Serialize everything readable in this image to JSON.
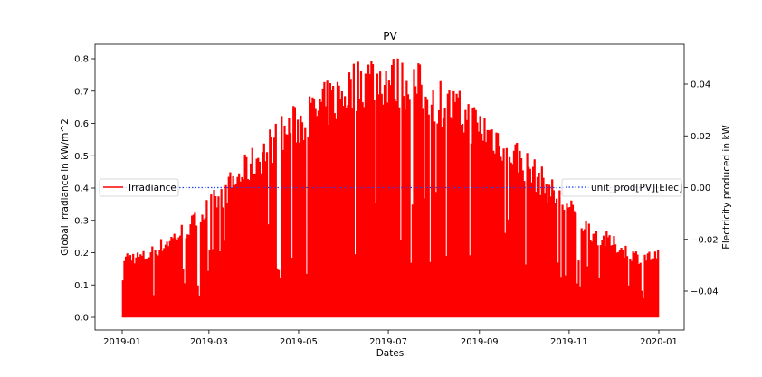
{
  "chart_data": {
    "type": "area",
    "title": "PV",
    "xlabel": "Dates",
    "ylabel_left": "Global Irradiance in kW/m^2",
    "ylabel_right": "Electricity produced in kW",
    "x_range": [
      "2019-01-01",
      "2020-01-01"
    ],
    "x_ticks": [
      "2019-01",
      "2019-03",
      "2019-05",
      "2019-07",
      "2019-09",
      "2019-11",
      "2020-01"
    ],
    "ylim_left": [
      0.0,
      0.8
    ],
    "y_ticks_left": [
      "0.0",
      "0.1",
      "0.2",
      "0.3",
      "0.4",
      "0.5",
      "0.6",
      "0.7",
      "0.8"
    ],
    "ylim_right": [
      -0.04,
      0.04
    ],
    "y_ticks_right": [
      "−0.04",
      "−0.02",
      "0.00",
      "0.02",
      "0.04"
    ],
    "grid": false,
    "series": [
      {
        "name": "Irradiance",
        "axis": "left",
        "color": "#ff0000",
        "style": "solid",
        "legend_position": "center-left",
        "description_daily_peak_kw_m2": {
          "2019-01": 0.2,
          "2019-02": 0.3,
          "2019-03": 0.45,
          "2019-04": 0.6,
          "2019-05": 0.7,
          "2019-06": 0.8,
          "2019-07": 0.77,
          "2019-08": 0.68,
          "2019-09": 0.58,
          "2019-10": 0.43,
          "2019-11": 0.28,
          "2019-12": 0.2
        }
      },
      {
        "name": "unit_prod[PV][Elec]",
        "axis": "right",
        "color": "#1f3fff",
        "style": "dotted",
        "legend_position": "center-right",
        "constant_value": 0.0
      }
    ]
  }
}
